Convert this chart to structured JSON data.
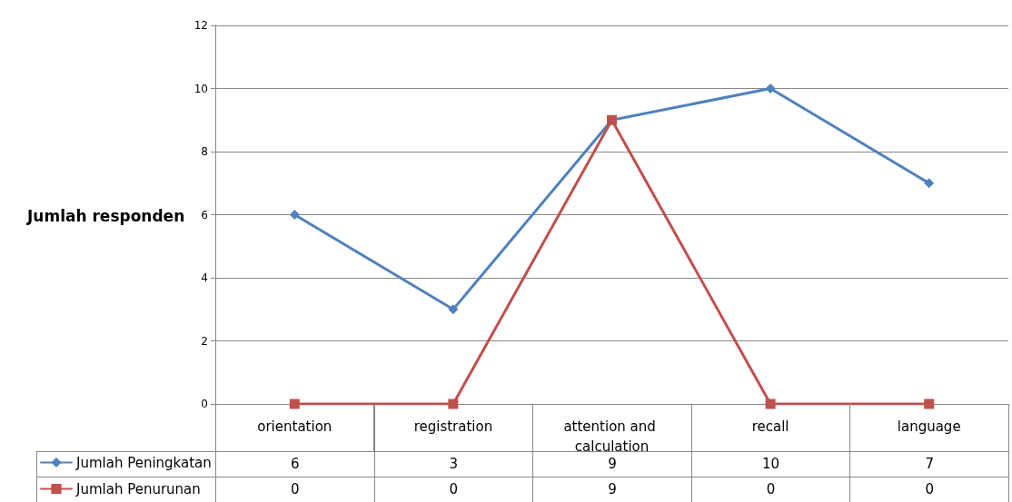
{
  "chart_data": {
    "type": "line",
    "ylabel": "Jumlah responden",
    "categories": [
      "orientation",
      "registration",
      "attention and calculation",
      "recall",
      "language"
    ],
    "series": [
      {
        "name": "Jumlah Peningkatan",
        "color": "#4f81bd",
        "marker": "diamond",
        "values": [
          6,
          3,
          9,
          10,
          7
        ]
      },
      {
        "name": "Jumlah Penurunan",
        "color": "#c0504d",
        "marker": "square",
        "values": [
          0,
          0,
          9,
          0,
          0
        ]
      }
    ],
    "ylim": [
      0,
      12
    ],
    "yticks": [
      0,
      2,
      4,
      6,
      8,
      10,
      12
    ],
    "grid": "y",
    "legend": "bottom left",
    "data_labels": true
  }
}
